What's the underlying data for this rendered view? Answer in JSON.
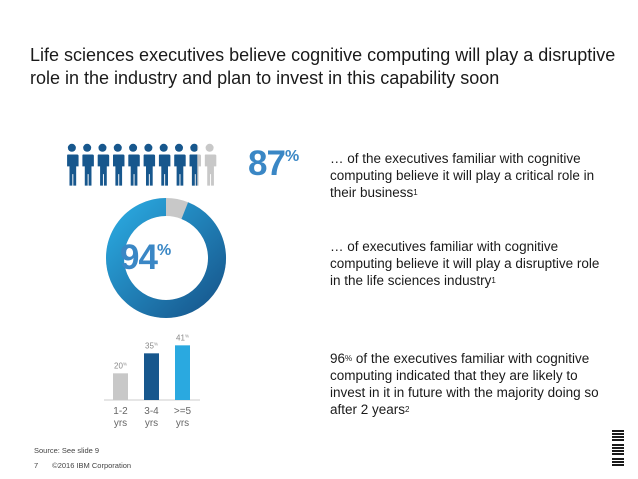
{
  "title": "Life sciences executives believe cognitive computing will play a disruptive role in the industry and plan to invest in this capability soon",
  "stat1": {
    "value": "87",
    "unit": "%",
    "fraction": 0.87,
    "text": "… of the executives familiar with cognitive computing believe it will play a critical role in their business",
    "footnote": "1"
  },
  "stat2": {
    "value": "94",
    "unit": "%",
    "fraction": 0.94,
    "text": "… of executives familiar with cognitive computing believe it will play a disruptive role in the life sciences industry",
    "footnote": "1"
  },
  "stat3": {
    "value": "96",
    "unit": "%",
    "text": "of the executives familiar with cognitive computing indicated that they are likely to invest in it in future with the majority doing so after 2 years",
    "footnote": "2"
  },
  "colors": {
    "accent": "#3a87c5",
    "dark": "#17578d",
    "light": "#2aa9e0",
    "grey": "#c8c8c8"
  },
  "chart_data": {
    "type": "bar",
    "categories": [
      "1-2 yrs",
      "3-4 yrs",
      ">=5 yrs"
    ],
    "values": [
      20,
      35,
      41
    ],
    "labels": [
      "20",
      "35",
      "41"
    ],
    "unit": "%",
    "ylim": [
      0,
      45
    ]
  },
  "source": "Source: See slide 9",
  "footer": {
    "page": "7",
    "copyright": "©2016 IBM Corporation"
  },
  "logo": "IBM"
}
